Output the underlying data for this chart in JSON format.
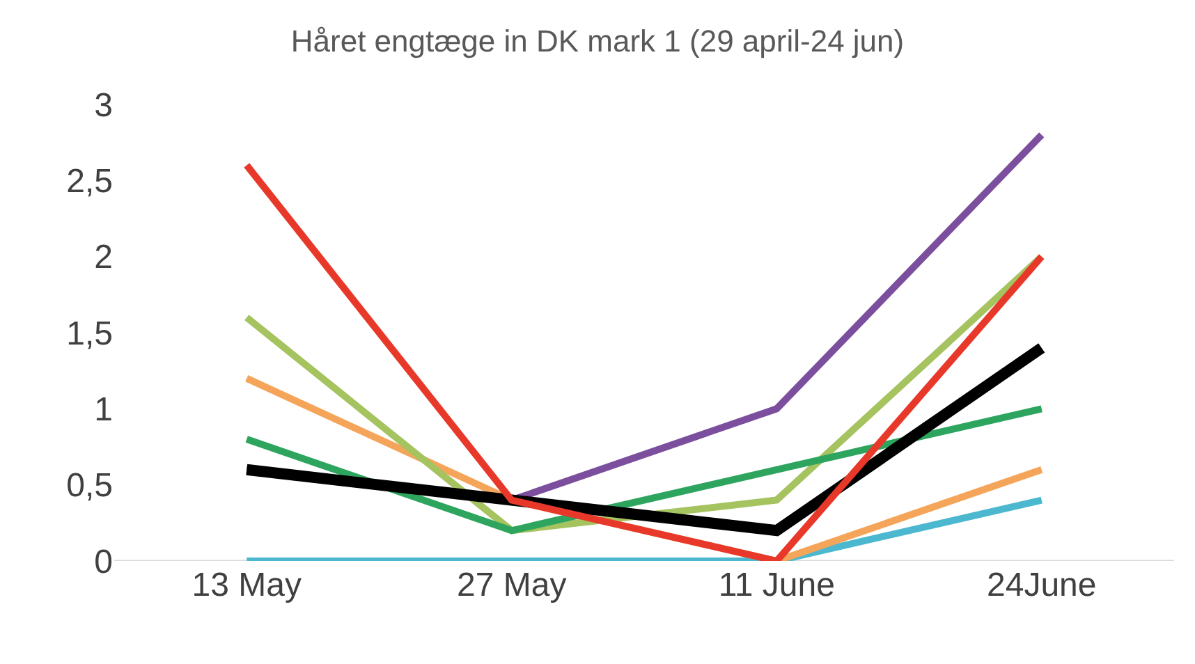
{
  "chart_data": {
    "type": "line",
    "title": "Håret engtæge in DK mark 1 (29 april-24 jun)",
    "categories": [
      "13 May",
      "27 May",
      "11 June",
      "24June"
    ],
    "series": [
      {
        "color": "#4bb8cf",
        "values": [
          0,
          0,
          0,
          0.4
        ]
      },
      {
        "color": "#f5a55a",
        "values": [
          1.2,
          0.4,
          0,
          0.6
        ]
      },
      {
        "color": "#a5c35f",
        "values": [
          1.6,
          0.2,
          0.4,
          2.0
        ]
      },
      {
        "color": "#2ea55e",
        "values": [
          0.8,
          0.2,
          0.6,
          1.0
        ]
      },
      {
        "color": "#7b4f9e",
        "values": [
          0.6,
          0.4,
          1.0,
          2.8
        ]
      },
      {
        "color": "#000000",
        "values": [
          0.6,
          0.4,
          0.2,
          1.4
        ]
      },
      {
        "color": "#e8382a",
        "values": [
          2.6,
          0.4,
          0,
          2.0
        ]
      }
    ],
    "ylim": [
      0,
      3
    ],
    "yticks": [
      0,
      {
        "value": 0.5,
        "label": "0,5"
      },
      1,
      {
        "value": 1.5,
        "label": "1,5"
      },
      2,
      {
        "value": 2.5,
        "label": "2,5"
      },
      3
    ],
    "marker": "none",
    "line_style": "solid"
  }
}
